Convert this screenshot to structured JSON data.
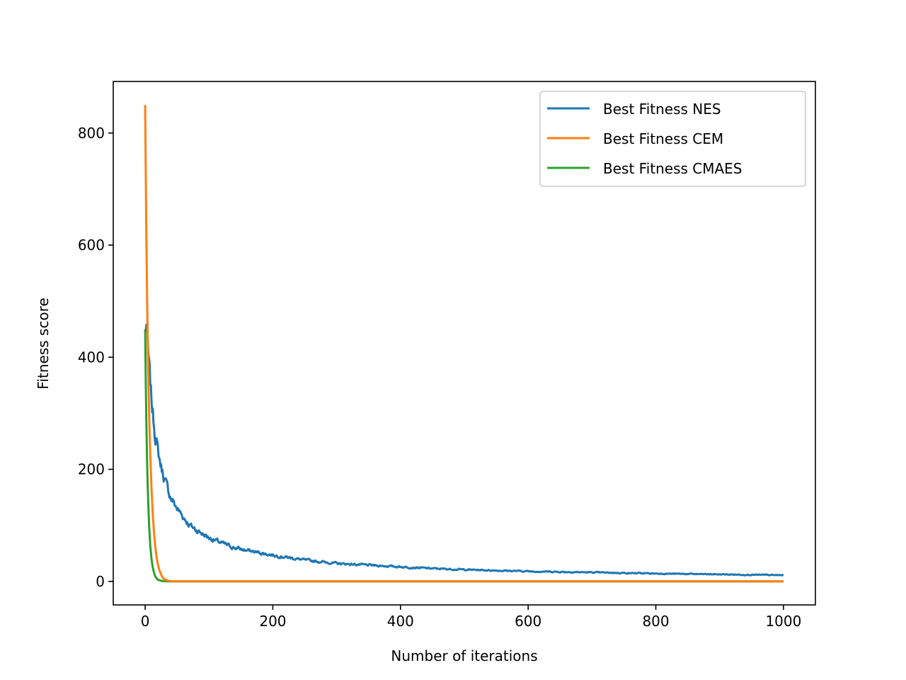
{
  "chart_data": {
    "type": "line",
    "title": "",
    "xlabel": "Number of iterations",
    "ylabel": "Fitness score",
    "xlim": [
      -50,
      1050
    ],
    "ylim": [
      -42,
      892
    ],
    "xticks": [
      0,
      200,
      400,
      600,
      800,
      1000
    ],
    "yticks": [
      0,
      200,
      400,
      600,
      800
    ],
    "grid": false,
    "legend_position": "top-right",
    "series": [
      {
        "name": "Best Fitness NES",
        "color": "#1f77b4",
        "noisy": true,
        "x": [
          0,
          2,
          5,
          8,
          10,
          12,
          15,
          18,
          20,
          25,
          30,
          35,
          40,
          45,
          50,
          60,
          70,
          80,
          90,
          100,
          120,
          140,
          160,
          180,
          200,
          250,
          300,
          350,
          400,
          450,
          500,
          600,
          700,
          800,
          900,
          1000
        ],
        "y": [
          445,
          460,
          395,
          350,
          320,
          300,
          270,
          250,
          230,
          205,
          185,
          165,
          150,
          140,
          130,
          115,
          100,
          92,
          85,
          78,
          68,
          60,
          55,
          51,
          47,
          38,
          32,
          29,
          26,
          23,
          21,
          18,
          16,
          14,
          12.5,
          11
        ]
      },
      {
        "name": "Best Fitness CEM",
        "color": "#ff7f0e",
        "noisy": false,
        "x": [
          0,
          1,
          2,
          3,
          4,
          5,
          6,
          7,
          8,
          10,
          12,
          14,
          16,
          18,
          20,
          22,
          25,
          28,
          30,
          35,
          40,
          50,
          60,
          1000
        ],
        "y": [
          850,
          720,
          600,
          510,
          430,
          370,
          310,
          265,
          225,
          165,
          118,
          85,
          60,
          42,
          30,
          21,
          12,
          6,
          4,
          1.5,
          0.5,
          0,
          0,
          0
        ]
      },
      {
        "name": "Best Fitness CMAES",
        "color": "#2ca02c",
        "noisy": false,
        "x": [
          0,
          1,
          2,
          3,
          4,
          5,
          6,
          7,
          8,
          10,
          12,
          15,
          18,
          20,
          25,
          30,
          35,
          40,
          50,
          1000
        ],
        "y": [
          450,
          350,
          275,
          215,
          170,
          135,
          105,
          82,
          64,
          39,
          24,
          11,
          5,
          3,
          1,
          0.3,
          0.1,
          0,
          0,
          0
        ]
      }
    ]
  }
}
